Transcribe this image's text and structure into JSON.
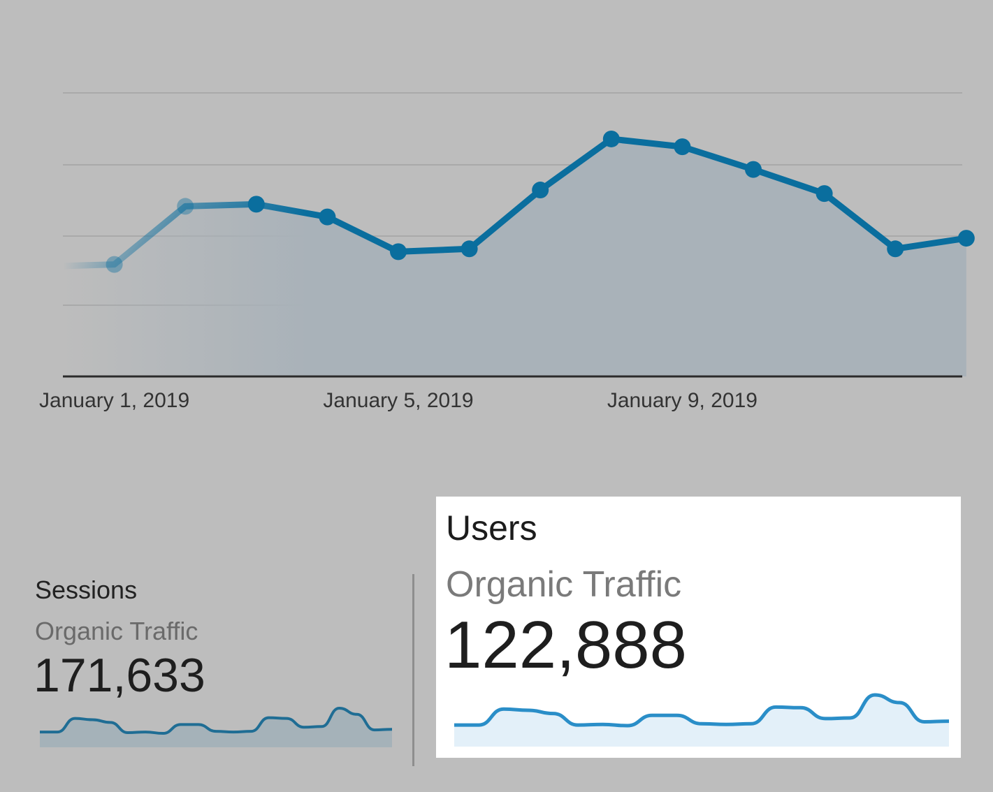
{
  "chart_data": [
    {
      "type": "line",
      "x": [
        "December 31, 2018",
        "January 1, 2019",
        "January 2, 2019",
        "January 3, 2019",
        "January 4, 2019",
        "January 5, 2019",
        "January 6, 2019",
        "January 7, 2019",
        "January 8, 2019",
        "January 9, 2019",
        "January 10, 2019",
        "January 11, 2019",
        "January 12, 2019",
        "January 13, 2019"
      ],
      "values": [
        1.55,
        1.58,
        2.4,
        2.43,
        2.25,
        1.76,
        1.8,
        2.63,
        3.35,
        3.24,
        2.92,
        2.58,
        1.8,
        1.95
      ],
      "tick_labels": [
        "January 1, 2019",
        "January 5, 2019",
        "January 9, 2019"
      ],
      "ylim": [
        0,
        4
      ],
      "grid": true,
      "color": "#0a6e9e"
    },
    {
      "type": "area",
      "title": "Sessions",
      "subtitle": "Organic Traffic",
      "total": "171,633",
      "values": [
        0.7,
        0.7,
        2.7,
        2.5,
        2.1,
        0.6,
        0.7,
        0.5,
        1.8,
        1.8,
        0.8,
        0.7,
        0.8,
        2.8,
        2.7,
        1.4,
        1.5,
        4.2,
        3.3,
        1.0,
        1.1
      ],
      "color": "#1f6d94"
    },
    {
      "type": "area",
      "title": "Users",
      "subtitle": "Organic Traffic",
      "total": "122,888",
      "values": [
        0.8,
        0.8,
        3.3,
        3.1,
        2.6,
        0.8,
        0.9,
        0.7,
        2.3,
        2.3,
        1.0,
        0.9,
        1.0,
        3.6,
        3.5,
        1.8,
        1.9,
        5.5,
        4.3,
        1.3,
        1.4
      ],
      "color": "#2a8ec8",
      "fill": "#e3f0f9"
    }
  ]
}
